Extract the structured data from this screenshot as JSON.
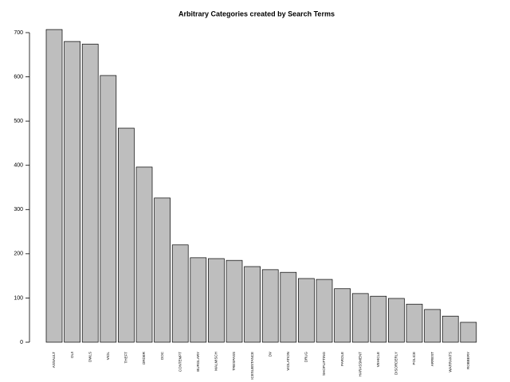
{
  "chart_data": {
    "type": "bar",
    "title": "Arbitrary Categories created by Search Terms",
    "categories": [
      "ASSAULT",
      "DUI",
      "DWLS",
      "VIOL",
      "THEFT",
      "ORDER",
      "DOC",
      "CONTEMPT",
      "BURGLARY",
      "MALMISCH",
      "TRESPASS",
      "ICESUBSTANCE",
      "DV",
      "VIOLATION",
      "DRUG",
      "SHOPLIFTING",
      "PAROLE",
      "HARASSMENT",
      "VEHICLE",
      "DISORDERLY",
      "POLICE",
      "ARREST",
      "WARRANTS",
      "ROBBERY"
    ],
    "values": [
      707,
      680,
      674,
      603,
      484,
      396,
      326,
      220,
      191,
      189,
      185,
      171,
      164,
      158,
      144,
      142,
      121,
      110,
      104,
      99,
      86,
      74,
      59,
      45
    ],
    "color": "#bebebe",
    "ylim": [
      0,
      700
    ],
    "yticks": [
      0,
      100,
      200,
      300,
      400,
      500,
      600,
      700
    ]
  }
}
